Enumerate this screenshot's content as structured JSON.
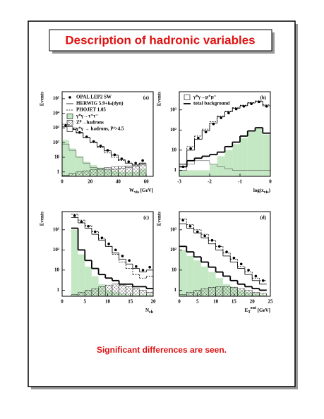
{
  "title": "Description of hadronic variables",
  "caption": "Significant differences are seen.",
  "chart_data": [
    {
      "type": "histogram",
      "panel_label": "(a)",
      "ylabel": "Events",
      "log_y": true,
      "legend": "top-left",
      "xlabel": [
        {
          "text": "W"
        },
        {
          "text": "vis",
          "sub": true
        },
        {
          "text": " [GeV]"
        }
      ],
      "xlim": [
        0,
        65
      ],
      "xticks": [
        0,
        20,
        40,
        60
      ],
      "ylim": [
        0.5,
        300000
      ],
      "yticks": [
        1,
        10,
        {
          "value": 100,
          "label": "10²"
        },
        {
          "value": 1000,
          "label": "10³"
        },
        {
          "value": 10000,
          "label": "10⁴"
        },
        {
          "value": 100000,
          "label": "10⁵"
        }
      ],
      "bins": [
        0,
        5,
        10,
        15,
        20,
        25,
        30,
        35,
        40,
        45,
        50,
        55,
        60
      ],
      "series": [
        {
          "name": "γ*γ→τ⁺τ⁻",
          "style": "fill",
          "color": "#c4e8c4",
          "values": [
            150,
            40,
            12,
            5,
            3,
            2,
            1.5,
            1.2,
            1,
            1,
            1,
            1.5
          ]
        },
        {
          "name": "Z⁰→hadrons",
          "style": "hatch",
          "color": "#000000",
          "values": [
            0.6,
            0.8,
            1,
            1.2,
            1.5,
            1.8,
            2,
            2.2,
            2.4,
            2.6,
            3,
            3.5
          ]
        },
        {
          "name": "γ*γ → hadrons, P²>4.5",
          "style": "open",
          "color": "#555555",
          "values": [
            80,
            30,
            10,
            4,
            2,
            1.5,
            1.5,
            1.5,
            1.8,
            2,
            2.5,
            3
          ]
        },
        {
          "name": "HERWIG 5.9+kₜ(dyn)",
          "style": "step",
          "color": "#000000",
          "values": [
            1200,
            800,
            450,
            220,
            110,
            55,
            28,
            14,
            7,
            4,
            3,
            4
          ]
        },
        {
          "name": "PHOJET 1.05",
          "style": "dashed",
          "color": "#000000",
          "values": [
            1800,
            1000,
            500,
            230,
            100,
            45,
            20,
            10,
            6,
            4,
            3,
            4
          ]
        },
        {
          "name": "OPAL LEP2 SW",
          "style": "points",
          "color": "#000000",
          "values": [
            1500,
            900,
            500,
            250,
            120,
            60,
            30,
            15,
            8,
            5,
            4,
            6
          ]
        }
      ]
    },
    {
      "type": "histogram",
      "panel_label": "(b)",
      "ylabel": "Events",
      "log_y": true,
      "legend": "top-left",
      "xlabel": [
        {
          "text": "log(x"
        },
        {
          "text": "vis",
          "sub": true
        },
        {
          "text": ")"
        }
      ],
      "xlim": [
        -3,
        0
      ],
      "xticks": [
        -3,
        -2,
        -1,
        0
      ],
      "ylim": [
        0.5,
        8000
      ],
      "yticks": [
        1,
        10,
        {
          "value": 100,
          "label": "10²"
        },
        {
          "value": 1000,
          "label": "10³"
        }
      ],
      "bins": [
        -3,
        -2.75,
        -2.5,
        -2.25,
        -2,
        -1.75,
        -1.5,
        -1.25,
        -1,
        -0.75,
        -0.5,
        -0.25,
        0
      ],
      "series": [
        {
          "style": "fill",
          "color": "#c4e8c4",
          "values": [
            1,
            1,
            1,
            1,
            2,
            5,
            10,
            20,
            40,
            80,
            120,
            60
          ]
        },
        {
          "name": "γ*γ→μ⁺μ⁻",
          "style": "open",
          "color": "#555555",
          "values": [
            1,
            2,
            3,
            3,
            2,
            1.5,
            1.2,
            1,
            1,
            1,
            1,
            1
          ]
        },
        {
          "name": "total background",
          "style": "thick",
          "color": "#000000",
          "values": [
            1.5,
            3,
            4,
            5,
            6,
            8,
            15,
            25,
            50,
            90,
            130,
            70
          ]
        },
        {
          "style": "step",
          "color": "#000000",
          "values": [
            2,
            10,
            35,
            90,
            220,
            450,
            800,
            1200,
            1600,
            2200,
            2600,
            1600
          ]
        },
        {
          "style": "dashed",
          "color": "#000000",
          "values": [
            2,
            15,
            50,
            110,
            260,
            500,
            850,
            1300,
            1700,
            2300,
            2800,
            1800
          ]
        },
        {
          "style": "points",
          "color": "#000000",
          "values": [
            1.5,
            12,
            40,
            80,
            200,
            400,
            700,
            1100,
            1500,
            2000,
            2500,
            1500
          ]
        }
      ]
    },
    {
      "type": "histogram",
      "panel_label": "(c)",
      "ylabel": "Events",
      "log_y": true,
      "xlabel": [
        {
          "text": "N"
        },
        {
          "text": "ch",
          "sub": true
        }
      ],
      "xlim": [
        0,
        20
      ],
      "xticks": [
        0,
        5,
        10,
        15,
        20
      ],
      "ylim": [
        0.5,
        8000
      ],
      "yticks": [
        1,
        10,
        {
          "value": 100,
          "label": "10²"
        },
        {
          "value": 1000,
          "label": "10³"
        }
      ],
      "bins": [
        2,
        3.5,
        5,
        6.5,
        8,
        9.5,
        11,
        12.5,
        14,
        15.5,
        17,
        18.5,
        20
      ],
      "series": [
        {
          "style": "fill",
          "color": "#c4e8c4",
          "values": [
            1000,
            60,
            15,
            5,
            2,
            1,
            0.8,
            0.7,
            0.6,
            0.6,
            0.6,
            0.6
          ]
        },
        {
          "style": "hatch",
          "color": "#000000",
          "values": [
            0.6,
            0.8,
            1,
            1.2,
            1.5,
            1.8,
            2,
            1.8,
            1.5,
            1.2,
            1,
            0.8
          ]
        },
        {
          "style": "thick",
          "color": "#000000",
          "values": [
            1200,
            100,
            30,
            12,
            6,
            4,
            3,
            2,
            2,
            1.5,
            1.5,
            1.2
          ]
        },
        {
          "style": "step",
          "color": "#000000",
          "values": [
            4000,
            2200,
            1200,
            600,
            300,
            150,
            70,
            35,
            20,
            12,
            8,
            10
          ]
        },
        {
          "style": "dashed",
          "color": "#000000",
          "values": [
            6000,
            3000,
            1600,
            800,
            350,
            150,
            60,
            25,
            12,
            6,
            4,
            5
          ]
        },
        {
          "style": "points",
          "color": "#000000",
          "values": [
            5000,
            2500,
            1500,
            800,
            400,
            200,
            100,
            50,
            30,
            15,
            10,
            14
          ]
        }
      ]
    },
    {
      "type": "histogram",
      "panel_label": "(d)",
      "ylabel": "Events",
      "log_y": true,
      "xlabel": [
        {
          "text": "E"
        },
        {
          "text": "T",
          "sub": true
        },
        {
          "text": "out",
          "sup": true
        },
        {
          "text": " [GeV]"
        }
      ],
      "xlim": [
        0,
        25
      ],
      "xticks": [
        0,
        5,
        10,
        15,
        20,
        25
      ],
      "ylim": [
        0.5,
        8000
      ],
      "yticks": [
        1,
        10,
        {
          "value": 100,
          "label": "10²"
        },
        {
          "value": 1000,
          "label": "10³"
        }
      ],
      "bins": [
        0,
        2,
        4,
        6,
        8,
        10,
        12,
        14,
        16,
        18,
        20,
        22,
        24
      ],
      "series": [
        {
          "style": "fill",
          "color": "#c4e8c4",
          "values": [
            100,
            50,
            30,
            15,
            8,
            4,
            2,
            1.5,
            1,
            0.8,
            0.7,
            0.6
          ]
        },
        {
          "style": "hatch",
          "color": "#000000",
          "values": [
            0.6,
            0.8,
            1,
            1.2,
            1.4,
            1.5,
            1.5,
            1.4,
            1.2,
            1,
            0.8,
            0.7
          ]
        },
        {
          "style": "thick",
          "color": "#000000",
          "values": [
            150,
            80,
            45,
            25,
            14,
            8,
            5,
            3,
            2,
            1.5,
            1.2,
            1
          ]
        },
        {
          "style": "step",
          "color": "#000000",
          "values": [
            2000,
            1200,
            700,
            400,
            200,
            100,
            50,
            25,
            12,
            6,
            3,
            2
          ]
        },
        {
          "style": "dashed",
          "color": "#000000",
          "values": [
            3500,
            1800,
            1000,
            600,
            300,
            150,
            70,
            35,
            15,
            8,
            4,
            3
          ]
        },
        {
          "style": "points",
          "color": "#000000",
          "values": [
            3000,
            1500,
            800,
            500,
            300,
            150,
            80,
            40,
            20,
            10,
            5,
            3
          ]
        }
      ]
    }
  ]
}
